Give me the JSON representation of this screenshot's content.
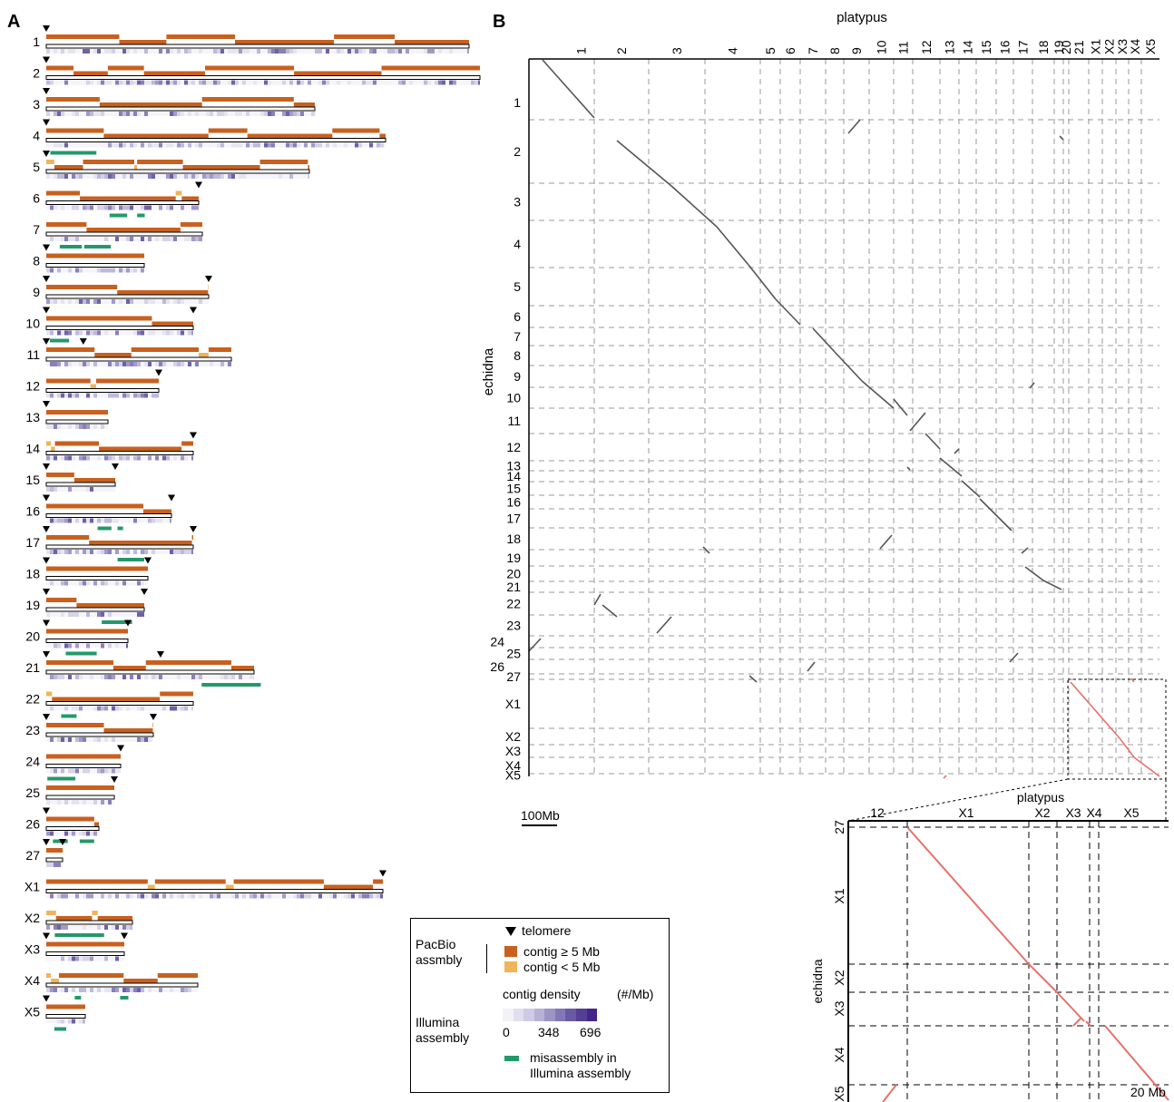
{
  "panel_a": {
    "label": "A",
    "chromosomes": [
      "1",
      "2",
      "3",
      "4",
      "5",
      "6",
      "7",
      "8",
      "9",
      "10",
      "11",
      "12",
      "13",
      "14",
      "15",
      "16",
      "17",
      "18",
      "19",
      "20",
      "21",
      "22",
      "23",
      "24",
      "25",
      "26",
      "27",
      "X1",
      "X2",
      "X3",
      "X4",
      "X5"
    ]
  },
  "panel_b": {
    "label": "B",
    "x_title": "platypus",
    "y_title": "echidna",
    "x_ticks": [
      "1",
      "2",
      "3",
      "4",
      "5",
      "6",
      "7",
      "8",
      "9",
      "10",
      "11",
      "12",
      "13",
      "14",
      "15",
      "16",
      "17",
      "18",
      "19",
      "20",
      "21",
      "X1",
      "X2",
      "X3",
      "X4",
      "X5"
    ],
    "y_ticks": [
      "1",
      "2",
      "3",
      "4",
      "5",
      "6",
      "7",
      "8",
      "9",
      "10",
      "11",
      "12",
      "13",
      "14",
      "15",
      "16",
      "17",
      "18",
      "19",
      "20",
      "21",
      "22",
      "23",
      "24",
      "25",
      "26",
      "27",
      "X1",
      "X2",
      "X3",
      "X4",
      "X5"
    ],
    "scale_bar": "100Mb"
  },
  "inset": {
    "x_title": "platypus",
    "y_title": "echidna",
    "x_ticks": [
      "12",
      "X1",
      "X2",
      "X3",
      "X4",
      "X5"
    ],
    "y_ticks": [
      "27",
      "X1",
      "X2",
      "X3",
      "X4",
      "X5"
    ],
    "scale_label": "20 Mb"
  },
  "legend": {
    "group_pacbio": "PacBio\nassmbly",
    "telomere": "telomere",
    "contig_large": "contig ≥ 5 Mb",
    "contig_small": "contig < 5 Mb",
    "group_illumina": "Illumina\nassembly",
    "density_title": "contig density",
    "density_unit": "(#/Mb)",
    "density_ticks": [
      "0",
      "348",
      "696"
    ],
    "misassembly": "misassembly in\nIllumina assembly"
  },
  "colors": {
    "contig_large": "#c8601f",
    "contig_small": "#f0b45a",
    "misassembly": "#23996b",
    "density_low": "#f1f0f8",
    "density_high": "#4a2a8c",
    "dot_autosome": "#555555",
    "dot_x": "#e8706a",
    "grid": "#9a9a9a"
  }
}
